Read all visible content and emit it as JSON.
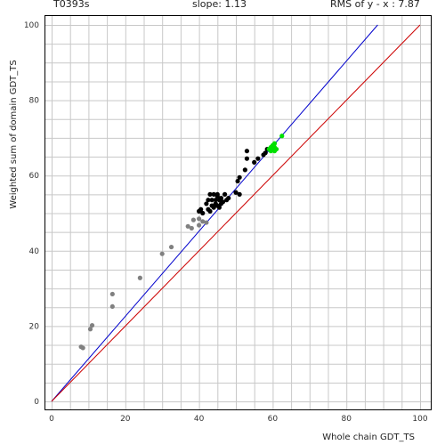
{
  "header": {
    "target": "T0393s",
    "slope": "slope: 1.13",
    "rms": "RMS of  y - x : 7.87"
  },
  "chart_data": {
    "type": "scatter",
    "title": "",
    "xlabel": "Whole chain GDT_TS",
    "ylabel": "Weighted sum of domain GDT_TS",
    "xlim": [
      0,
      100
    ],
    "ylim": [
      0,
      100
    ],
    "xticks": [
      "0",
      "20",
      "40",
      "60",
      "80",
      "100"
    ],
    "yticks": [
      "0",
      "20",
      "40",
      "60",
      "80",
      "100"
    ],
    "grid": true,
    "colors": {
      "gray": "#808080",
      "black": "#000000",
      "green": "#00e000",
      "fit_line": "#0000cc",
      "identity_line": "#cc0000"
    },
    "lines": [
      {
        "name": "fit",
        "x": [
          0,
          88.5
        ],
        "y": [
          0,
          100
        ],
        "color": "#0000cc"
      },
      {
        "name": "identity",
        "x": [
          0,
          100
        ],
        "y": [
          0,
          100
        ],
        "color": "#cc0000"
      }
    ],
    "series": [
      {
        "color": "#808080",
        "x": [
          8.0,
          8.5,
          10.5,
          11.0,
          16.5,
          16.5,
          24.0,
          30.0,
          32.5,
          37.0,
          38.0,
          38.5,
          40.0,
          40.0,
          41.0,
          42.0
        ],
        "y": [
          14.5,
          14.2,
          19.2,
          20.2,
          25.2,
          28.5,
          32.8,
          39.2,
          41.0,
          46.5,
          46.0,
          48.2,
          48.5,
          46.8,
          47.8,
          47.5
        ]
      },
      {
        "color": "#000000",
        "x": [
          40.0,
          40.5,
          41.0,
          42.0,
          42.5,
          42.5,
          43.0,
          43.0,
          43.5,
          43.5,
          44.0,
          44.0,
          44.5,
          44.5,
          45.0,
          45.0,
          45.0,
          45.5,
          45.5,
          46.0,
          46.0,
          46.5,
          47.0,
          47.5,
          48.0,
          50.0,
          50.5,
          51.0,
          51.0,
          52.5,
          53.0,
          53.0,
          55.0,
          56.0,
          57.5,
          58.0,
          58.5
        ],
        "y": [
          50.5,
          51.0,
          50.0,
          52.5,
          51.0,
          53.5,
          50.5,
          55.0,
          52.0,
          53.5,
          51.5,
          55.0,
          52.5,
          53.5,
          54.5,
          52.0,
          55.0,
          51.5,
          53.5,
          54.0,
          52.5,
          53.0,
          55.0,
          53.5,
          54.0,
          55.5,
          58.5,
          55.0,
          59.5,
          61.5,
          64.5,
          66.5,
          63.5,
          64.5,
          65.5,
          66.0,
          67.0
        ]
      },
      {
        "color": "#00e000",
        "x": [
          59.0,
          59.5,
          59.5,
          60.0,
          60.0,
          60.5,
          60.5,
          60.5,
          61.0,
          62.5
        ],
        "y": [
          67.0,
          67.5,
          66.5,
          68.0,
          67.0,
          67.5,
          66.5,
          68.5,
          67.0,
          70.5
        ]
      }
    ]
  }
}
